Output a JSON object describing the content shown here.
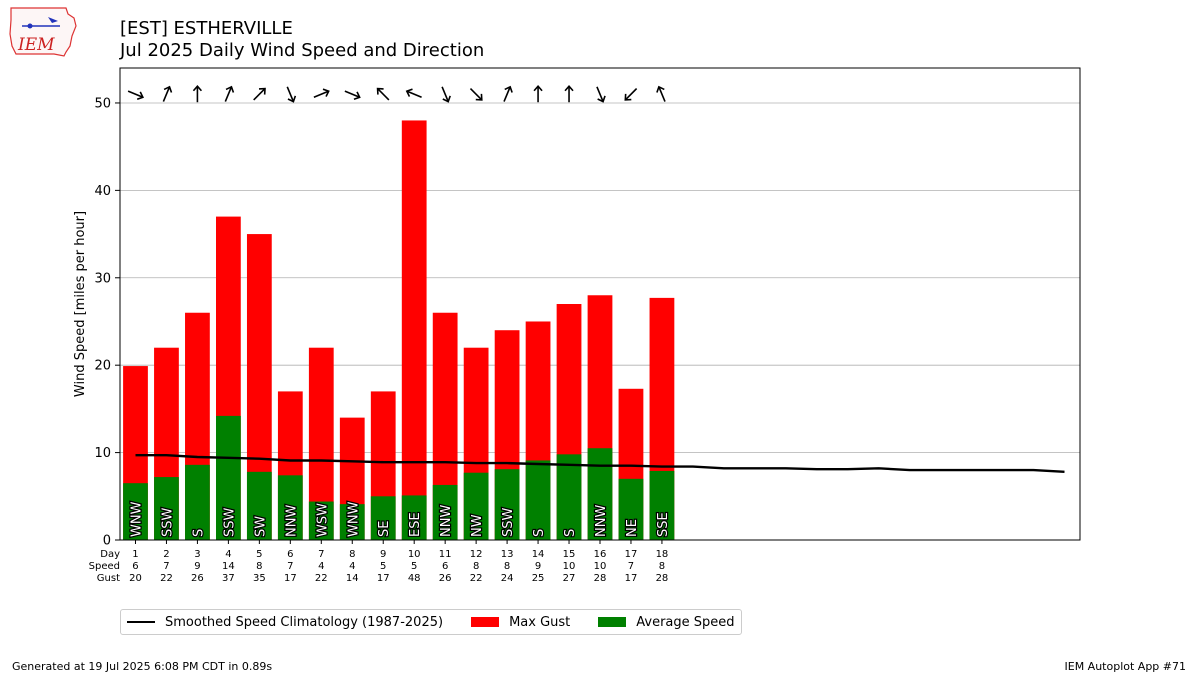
{
  "header": {
    "title_line1": "[EST] ESTHERVILLE",
    "title_line2": "Jul 2025 Daily Wind Speed and Direction",
    "logo_text": "IEM"
  },
  "footer": {
    "generated": "Generated at 19 Jul 2025 6:08 PM CDT in 0.89s",
    "app": "IEM Autoplot App #71"
  },
  "legend": {
    "climatology": "Smoothed Speed Climatology (1987-2025)",
    "gust": "Max Gust",
    "average": "Average Speed"
  },
  "colors": {
    "gust": "#ff0000",
    "average": "#008000",
    "climatology": "#000000",
    "grid": "#b0b0b0"
  },
  "chart_data": {
    "type": "bar",
    "ylabel": "Wind Speed [miles per hour]",
    "ylim": [
      0,
      54
    ],
    "xlim": [
      0.5,
      31.5
    ],
    "yticks": [
      0,
      10,
      20,
      30,
      40,
      50
    ],
    "grid": "horizontal",
    "legend_placement": "bottom",
    "row_labels": [
      "Day",
      "Speed",
      "Gust"
    ],
    "days": [
      1,
      2,
      3,
      4,
      5,
      6,
      7,
      8,
      9,
      10,
      11,
      12,
      13,
      14,
      15,
      16,
      17,
      18
    ],
    "average_speed_labels": [
      6,
      7,
      9,
      14,
      8,
      7,
      4,
      4,
      5,
      5,
      6,
      8,
      8,
      9,
      10,
      10,
      7,
      8
    ],
    "max_gust_labels": [
      20,
      22,
      26,
      37,
      35,
      17,
      22,
      14,
      17,
      48,
      26,
      22,
      24,
      25,
      27,
      28,
      17,
      28
    ],
    "series": [
      {
        "name": "Max Gust",
        "values": [
          19.9,
          22,
          26,
          37,
          35,
          17,
          22,
          14,
          17,
          48,
          26,
          22,
          24,
          25,
          27,
          28,
          17.3,
          27.7
        ]
      },
      {
        "name": "Average Speed",
        "values": [
          6.5,
          7.2,
          8.6,
          14.2,
          7.8,
          7.4,
          4.4,
          4.1,
          5.0,
          5.1,
          6.3,
          7.7,
          8.1,
          9.1,
          9.8,
          10.5,
          7.0,
          7.9
        ]
      }
    ],
    "direction_labels": [
      "WNW",
      "SSW",
      "S",
      "SSW",
      "SW",
      "NNW",
      "WSW",
      "WNW",
      "SE",
      "ESE",
      "NNW",
      "NW",
      "SSW",
      "S",
      "S",
      "NNW",
      "NE",
      "SSE"
    ],
    "direction_degrees": [
      292.5,
      202.5,
      180,
      202.5,
      225,
      337.5,
      247.5,
      292.5,
      135,
      112.5,
      337.5,
      315,
      202.5,
      180,
      180,
      337.5,
      45,
      157.5
    ],
    "climatology": {
      "name": "Smoothed Speed Climatology (1987-2025)",
      "x": [
        1,
        2,
        3,
        4,
        5,
        6,
        7,
        8,
        9,
        10,
        11,
        12,
        13,
        14,
        15,
        16,
        17,
        18,
        19,
        20,
        21,
        22,
        23,
        24,
        25,
        26,
        27,
        28,
        29,
        30,
        31
      ],
      "values": [
        9.7,
        9.7,
        9.5,
        9.4,
        9.3,
        9.1,
        9.1,
        9.0,
        8.9,
        8.9,
        8.9,
        8.8,
        8.8,
        8.7,
        8.6,
        8.5,
        8.5,
        8.4,
        8.4,
        8.2,
        8.2,
        8.2,
        8.1,
        8.1,
        8.2,
        8.0,
        8.0,
        8.0,
        8.0,
        8.0,
        7.8
      ]
    }
  }
}
